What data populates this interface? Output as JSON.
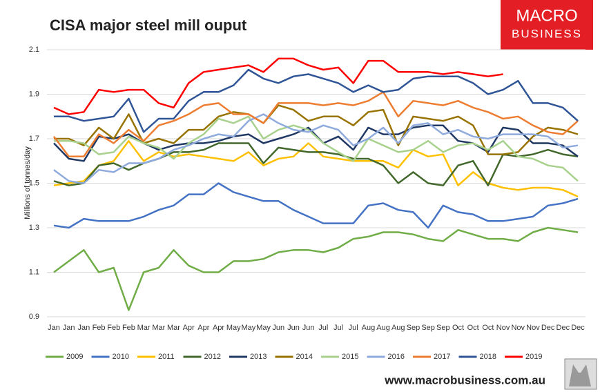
{
  "chart_data": {
    "type": "line",
    "title": "CISA major steel mill ouput",
    "y_label": "Millions of tonnes/day",
    "logo": [
      "MACRO",
      "BUSINESS"
    ],
    "footer": "www.macrobusiness.com.au",
    "categories": [
      "Jan",
      "Jan",
      "Jan",
      "Feb",
      "Feb",
      "Feb",
      "Mar",
      "Mar",
      "Mar",
      "Apr",
      "Apr",
      "Apr",
      "May",
      "May",
      "May",
      "Jun",
      "Jun",
      "Jun",
      "Jul",
      "Jul",
      "Jul",
      "Aug",
      "Aug",
      "Aug",
      "Sep",
      "Sep",
      "Sep",
      "Oct",
      "Oct",
      "Oct",
      "Nov",
      "Nov",
      "Nov",
      "Dec",
      "Dec",
      "Dec"
    ],
    "ylim": [
      0.9,
      2.1
    ],
    "yticks": [
      0.9,
      1.1,
      1.3,
      1.5,
      1.7,
      1.9,
      2.1
    ],
    "grid": true,
    "legend": "bottom",
    "series": [
      {
        "name": "2009",
        "color": "#70ad47",
        "values": [
          1.1,
          1.15,
          1.2,
          1.1,
          1.12,
          0.93,
          1.1,
          1.12,
          1.2,
          1.13,
          1.1,
          1.1,
          1.15,
          1.15,
          1.16,
          1.19,
          1.2,
          1.2,
          1.19,
          1.21,
          1.25,
          1.26,
          1.28,
          1.28,
          1.27,
          1.25,
          1.24,
          1.29,
          1.27,
          1.25,
          1.25,
          1.24,
          1.28,
          1.3,
          1.29,
          1.28
        ]
      },
      {
        "name": "2010",
        "color": "#4472c4",
        "values": [
          1.31,
          1.3,
          1.34,
          1.33,
          1.33,
          1.33,
          1.35,
          1.38,
          1.4,
          1.45,
          1.45,
          1.5,
          1.46,
          1.44,
          1.42,
          1.42,
          1.38,
          1.35,
          1.32,
          1.32,
          1.32,
          1.4,
          1.41,
          1.38,
          1.37,
          1.3,
          1.4,
          1.37,
          1.36,
          1.33,
          1.33,
          1.34,
          1.35,
          1.4,
          1.41,
          1.43
        ]
      },
      {
        "name": "2011",
        "color": "#ffc000",
        "values": [
          1.49,
          1.5,
          1.51,
          1.58,
          1.6,
          1.69,
          1.6,
          1.64,
          1.62,
          1.63,
          1.62,
          1.61,
          1.6,
          1.64,
          1.58,
          1.61,
          1.62,
          1.68,
          1.62,
          1.61,
          1.6,
          1.6,
          1.6,
          1.57,
          1.65,
          1.62,
          1.63,
          1.49,
          1.55,
          1.5,
          1.48,
          1.47,
          1.48,
          1.48,
          1.47,
          1.44
        ]
      },
      {
        "name": "2012",
        "color": "#43682b",
        "values": [
          1.51,
          1.49,
          1.5,
          1.58,
          1.59,
          1.56,
          1.59,
          1.61,
          1.64,
          1.64,
          1.65,
          1.68,
          1.68,
          1.68,
          1.59,
          1.66,
          1.65,
          1.64,
          1.64,
          1.63,
          1.61,
          1.61,
          1.58,
          1.5,
          1.55,
          1.5,
          1.49,
          1.58,
          1.6,
          1.49,
          1.63,
          1.62,
          1.63,
          1.65,
          1.63,
          1.62
        ]
      },
      {
        "name": "2013",
        "color": "#203864",
        "values": [
          1.68,
          1.61,
          1.6,
          1.71,
          1.7,
          1.72,
          1.68,
          1.65,
          1.67,
          1.68,
          1.68,
          1.69,
          1.71,
          1.72,
          1.68,
          1.7,
          1.72,
          1.75,
          1.68,
          1.71,
          1.65,
          1.75,
          1.72,
          1.72,
          1.75,
          1.76,
          1.76,
          1.69,
          1.68,
          1.64,
          1.75,
          1.74,
          1.68,
          1.68,
          1.67,
          1.62
        ]
      },
      {
        "name": "2014",
        "color": "#997300",
        "values": [
          1.7,
          1.7,
          1.67,
          1.75,
          1.7,
          1.81,
          1.68,
          1.7,
          1.68,
          1.74,
          1.74,
          1.8,
          1.82,
          1.81,
          1.77,
          1.85,
          1.83,
          1.78,
          1.8,
          1.8,
          1.76,
          1.82,
          1.83,
          1.67,
          1.8,
          1.79,
          1.78,
          1.8,
          1.76,
          1.63,
          1.63,
          1.64,
          1.71,
          1.75,
          1.74,
          1.72
        ]
      },
      {
        "name": "2015",
        "color": "#a9d18e",
        "values": [
          1.69,
          1.69,
          1.68,
          1.63,
          1.64,
          1.71,
          1.68,
          1.66,
          1.61,
          1.68,
          1.72,
          1.79,
          1.77,
          1.8,
          1.7,
          1.74,
          1.76,
          1.74,
          1.68,
          1.64,
          1.6,
          1.7,
          1.67,
          1.64,
          1.65,
          1.69,
          1.64,
          1.67,
          1.68,
          1.65,
          1.69,
          1.62,
          1.61,
          1.58,
          1.57,
          1.51
        ]
      },
      {
        "name": "2016",
        "color": "#8faadc",
        "values": [
          1.56,
          1.51,
          1.5,
          1.56,
          1.55,
          1.59,
          1.59,
          1.61,
          1.65,
          1.67,
          1.7,
          1.72,
          1.71,
          1.78,
          1.81,
          1.77,
          1.74,
          1.73,
          1.76,
          1.74,
          1.67,
          1.7,
          1.75,
          1.68,
          1.76,
          1.77,
          1.72,
          1.74,
          1.71,
          1.7,
          1.72,
          1.72,
          1.72,
          1.71,
          1.66,
          1.67
        ]
      },
      {
        "name": "2017",
        "color": "#ed7d31",
        "values": [
          1.71,
          1.62,
          1.62,
          1.72,
          1.68,
          1.74,
          1.69,
          1.76,
          1.78,
          1.81,
          1.85,
          1.86,
          1.81,
          1.81,
          1.77,
          1.86,
          1.86,
          1.86,
          1.85,
          1.86,
          1.85,
          1.87,
          1.91,
          1.8,
          1.87,
          1.86,
          1.85,
          1.87,
          1.84,
          1.82,
          1.79,
          1.8,
          1.76,
          1.73,
          1.72,
          1.78
        ]
      },
      {
        "name": "2018",
        "color": "#2f5597",
        "values": [
          1.8,
          1.8,
          1.78,
          1.79,
          1.8,
          1.88,
          1.73,
          1.79,
          1.79,
          1.87,
          1.91,
          1.91,
          1.94,
          2.01,
          1.97,
          1.95,
          1.98,
          1.99,
          1.97,
          1.95,
          1.91,
          1.94,
          1.91,
          1.92,
          1.97,
          1.98,
          1.98,
          1.98,
          1.95,
          1.9,
          1.92,
          1.96,
          1.86,
          1.86,
          1.84,
          1.78
        ]
      },
      {
        "name": "2019",
        "color": "#ff0000",
        "values": [
          1.84,
          1.81,
          1.82,
          1.92,
          1.91,
          1.92,
          1.92,
          1.86,
          1.84,
          1.95,
          2.0,
          2.01,
          2.02,
          2.03,
          2.0,
          2.06,
          2.06,
          2.03,
          2.01,
          2.02,
          1.95,
          2.05,
          2.05,
          2.0,
          2.0,
          2.0,
          1.99,
          2.0,
          1.99,
          1.98,
          1.99,
          null,
          null,
          null,
          null,
          null
        ]
      }
    ]
  }
}
